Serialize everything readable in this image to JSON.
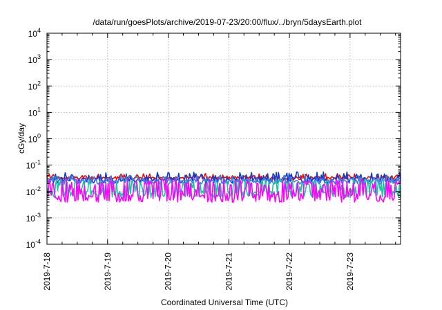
{
  "chart_data": {
    "type": "line",
    "title": "/data/run/goesPlots/archive/2019-07-23/20:00/flux/../bryn/5daysEarth.plot",
    "xlabel": "Coordinated Universal Time (UTC)",
    "ylabel": "cGy/day",
    "yscale": "log",
    "ylim": [
      0.0001,
      10000
    ],
    "xlim": [
      "2019-07-18",
      "2019-07-23 20:00"
    ],
    "grid": true,
    "x_ticks": [
      "2019-7-18",
      "2019-7-19",
      "2019-7-20",
      "2019-7-21",
      "2019-7-22",
      "2019-7-23"
    ],
    "y_ticks": [
      {
        "base": "10",
        "exp": "4"
      },
      {
        "base": "10",
        "exp": "3"
      },
      {
        "base": "10",
        "exp": "2"
      },
      {
        "base": "10",
        "exp": "1"
      },
      {
        "base": "10",
        "exp": "0"
      },
      {
        "base": "10",
        "exp": "-1"
      },
      {
        "base": "10",
        "exp": "-2"
      },
      {
        "base": "10",
        "exp": "-3"
      },
      {
        "base": "10",
        "exp": "-4"
      }
    ],
    "series": [
      {
        "color": "#ff0000",
        "level": 0.032,
        "min": 0.022,
        "max": 0.05
      },
      {
        "color": "#0b3bd6",
        "level": 0.027,
        "min": 0.013,
        "max": 0.06
      },
      {
        "color": "#3f7fd9",
        "level": 0.024,
        "min": 0.011,
        "max": 0.045
      },
      {
        "color": "#1fc3a2",
        "level": 0.008,
        "min": 0.005,
        "max": 0.03
      },
      {
        "color": "#ff00ff",
        "level": 0.0055,
        "min": 0.004,
        "max": 0.03
      }
    ]
  }
}
